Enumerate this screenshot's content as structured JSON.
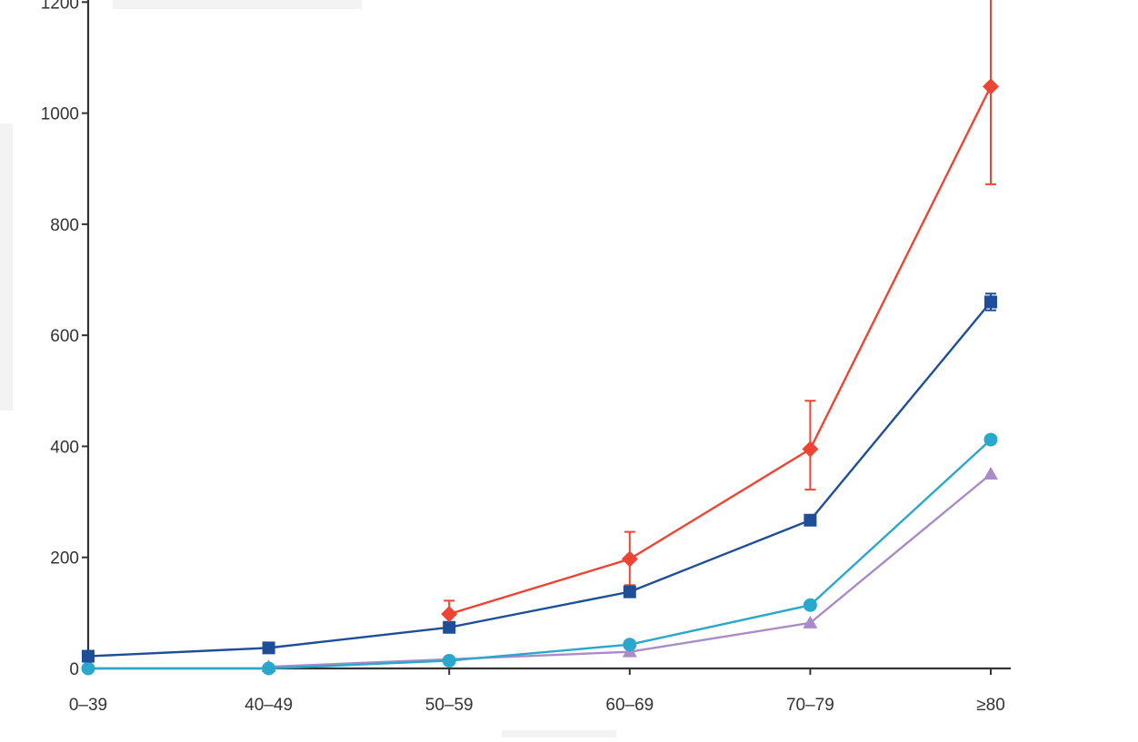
{
  "chart_data": {
    "type": "line",
    "categories": [
      "0–39",
      "40–49",
      "50–59",
      "60–69",
      "70–79",
      "≥80"
    ],
    "ylim": [
      0,
      1200
    ],
    "yticks": [
      0,
      200,
      400,
      600,
      800,
      1000,
      1200
    ],
    "ytick_labels": [
      "0",
      "200",
      "400",
      "600",
      "800",
      "1000",
      "1200"
    ],
    "grid": false,
    "series": [
      {
        "color": "#ee4433",
        "marker": "diamond",
        "values": [
          null,
          null,
          98,
          197,
          395,
          1048
        ],
        "err_low": [
          null,
          null,
          75,
          150,
          322,
          872
        ],
        "err_high": [
          null,
          null,
          122,
          246,
          482,
          1215
        ]
      },
      {
        "color": "#1f4e98",
        "marker": "square",
        "values": [
          22,
          37,
          74,
          138,
          267,
          660
        ],
        "err_low": [
          null,
          null,
          null,
          null,
          null,
          645
        ],
        "err_high": [
          null,
          null,
          null,
          null,
          null,
          675
        ]
      },
      {
        "color": "#2aa7cc",
        "marker": "circle",
        "values": [
          0,
          0,
          14,
          43,
          114,
          412
        ],
        "err_low": [
          null,
          null,
          null,
          null,
          null,
          null
        ],
        "err_high": [
          null,
          null,
          null,
          null,
          null,
          null
        ]
      },
      {
        "color": "#a88bc7",
        "marker": "triangle",
        "values": [
          null,
          3,
          null,
          30,
          82,
          350
        ],
        "err_low": [
          null,
          null,
          null,
          null,
          null,
          null
        ],
        "err_high": [
          null,
          null,
          null,
          null,
          null,
          null
        ]
      }
    ]
  }
}
